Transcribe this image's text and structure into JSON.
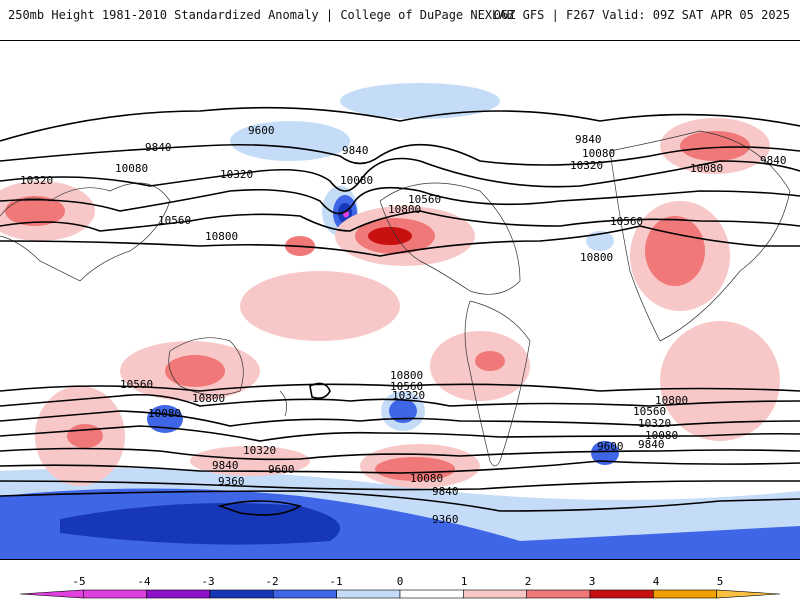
{
  "header": {
    "left_title": "250mb Height 1981-2010 Standardized Anomaly | College of DuPage NEXLAB",
    "right_title": "06Z GFS | F267 Valid: 09Z SAT APR 05 2025"
  },
  "contour_labels": [
    "9600",
    "9840",
    "10080",
    "10320",
    "10560",
    "10800",
    "9840",
    "10080",
    "10320",
    "10560",
    "10800",
    "9840",
    "10080",
    "10320",
    "10560",
    "10800",
    "10080",
    "9840",
    "10560",
    "10080",
    "10800",
    "10320",
    "9840",
    "9600",
    "9360",
    "10800",
    "10560",
    "10320",
    "10080",
    "9840",
    "10800",
    "10560",
    "10320",
    "10080",
    "9840",
    "9600",
    "9360"
  ],
  "colorbar": {
    "ticks": [
      "-5",
      "-4",
      "-3",
      "-2",
      "-1",
      "0",
      "1",
      "2",
      "3",
      "4",
      "5"
    ],
    "colors": [
      "#e040e0",
      "#8e10c8",
      "#1638b8",
      "#3f66e6",
      "#c4dcf8",
      "#ffffff",
      "#f8c8c8",
      "#f07878",
      "#c81010",
      "#f0a000",
      "#f8c040"
    ]
  }
}
